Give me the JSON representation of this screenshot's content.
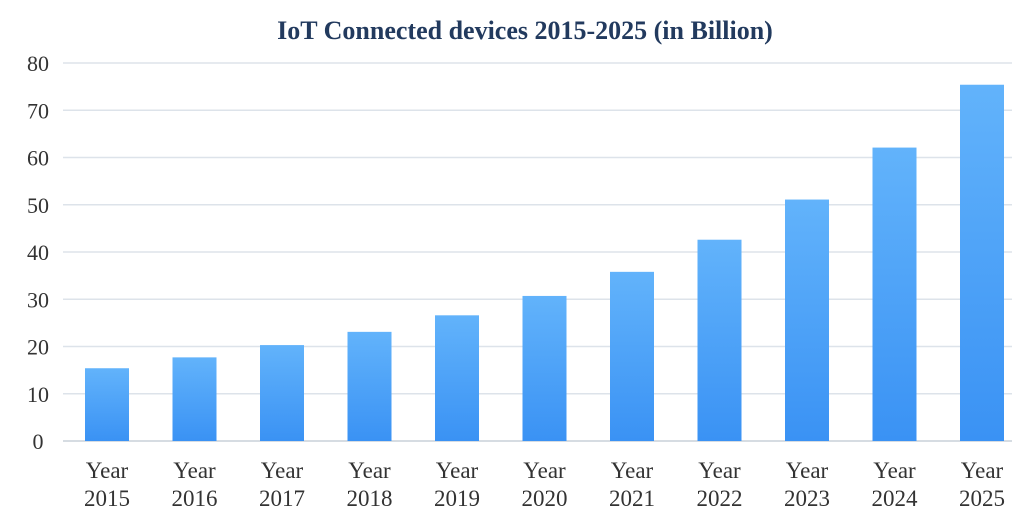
{
  "chart_data": {
    "type": "bar",
    "title": "IoT Connected devices 2015-2025 (in Billion)",
    "xlabel": "",
    "ylabel": "",
    "categories": [
      [
        "Year",
        "2015"
      ],
      [
        "Year",
        "2016"
      ],
      [
        "Year",
        "2017"
      ],
      [
        "Year",
        "2018"
      ],
      [
        "Year",
        "2019"
      ],
      [
        "Year",
        "2020"
      ],
      [
        "Year",
        "2021"
      ],
      [
        "Year",
        "2022"
      ],
      [
        "Year",
        "2023"
      ],
      [
        "Year",
        "2024"
      ],
      [
        "Year",
        "2025"
      ]
    ],
    "values": [
      15.4,
      17.7,
      20.3,
      23.1,
      26.6,
      30.7,
      35.8,
      42.6,
      51.1,
      62.1,
      75.4
    ],
    "ylim": [
      0,
      80
    ],
    "yticks": [
      0,
      10,
      20,
      30,
      40,
      50,
      60,
      70,
      80
    ],
    "grid": true,
    "legend": "none",
    "colors": {
      "bar_top": "#62b3fb",
      "bar_bottom": "#3a92f4",
      "title": "#223a5e",
      "grid": "#dde3ea",
      "text": "#333333"
    }
  }
}
